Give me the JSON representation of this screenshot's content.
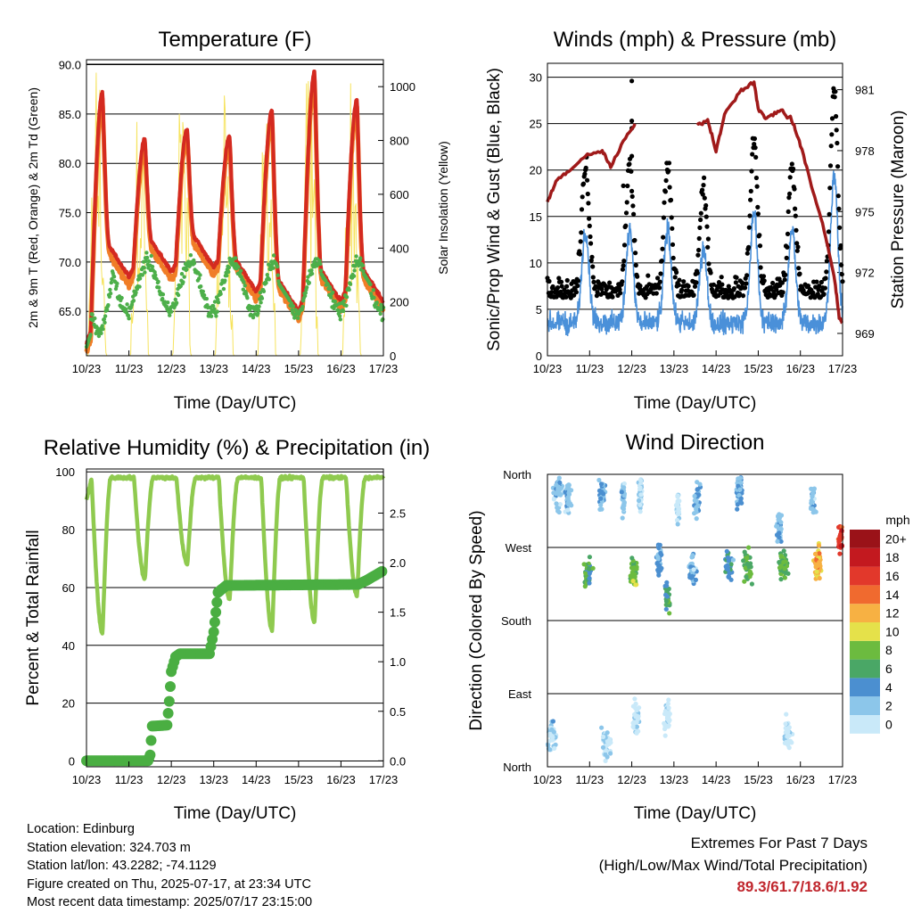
{
  "panels": {
    "temperature": {
      "title": "Temperature (F)",
      "ylabel_left": "2m & 9m T (Red, Orange) & 2m Td (Green)",
      "ylabel_right": "Solar Insolation (Yellow)",
      "xlabel": "Time (Day/UTC)"
    },
    "winds": {
      "title": "Winds (mph) & Pressure (mb)",
      "ylabel_left": "Sonic/Prop Wind & Gust (Blue, Black)",
      "ylabel_right": "Station Pressure (Maroon)",
      "xlabel": "Time (Day/UTC)"
    },
    "humidity": {
      "title": "Relative Humidity (%) & Precipitation (in)",
      "ylabel_left": "Percent & Total Rainfall",
      "xlabel": "Time (Day/UTC)"
    },
    "direction": {
      "title": "Wind Direction",
      "ylabel_left": "Direction (Colored By Speed)",
      "xlabel": "Time (Day/UTC)",
      "legend_title": "mph"
    }
  },
  "chart_data": [
    {
      "type": "line",
      "title": "Temperature (F)",
      "x": [
        "10/23",
        "11/23",
        "12/23",
        "13/23",
        "14/23",
        "15/23",
        "16/23",
        "17/23"
      ],
      "ylim": [
        60.5,
        90.5
      ],
      "y2lim": [
        0,
        1100
      ],
      "yticks": [
        65.0,
        70.0,
        75.0,
        80.0,
        85.0,
        90.0
      ],
      "y2ticks": [
        0,
        200,
        400,
        600,
        800,
        1000
      ],
      "daily_max_T": [
        87.3,
        82.5,
        83.5,
        82.8,
        85.4,
        89.3,
        86.4
      ],
      "daily_min_T": [
        61.7,
        68.5,
        69.0,
        69.5,
        67.0,
        65.0,
        66.0
      ],
      "colors": {
        "t2m": "#d42a20",
        "t9m": "#f07d27",
        "td": "#4daf4a",
        "solar": "#f6e35f"
      },
      "series": [
        {
          "name": "2m T"
        },
        {
          "name": "9m T"
        },
        {
          "name": "2m Td"
        },
        {
          "name": "Solar Insolation"
        }
      ]
    },
    {
      "type": "scatter",
      "title": "Winds (mph) & Pressure (mb)",
      "x": [
        "10/23",
        "11/23",
        "12/23",
        "13/23",
        "14/23",
        "15/23",
        "16/23",
        "17/23"
      ],
      "ylim": [
        0,
        31.5
      ],
      "y2lim": [
        967.9,
        982.3
      ],
      "yticks": [
        0,
        5,
        10,
        15,
        20,
        25,
        30
      ],
      "y2ticks": [
        969,
        972,
        975,
        978,
        981
      ],
      "max_gust": 29.6,
      "colors": {
        "wind": "#4a90d9",
        "gust": "#000000",
        "pressure": "#a01a1a"
      },
      "series": [
        {
          "name": "Sonic/Prop Wind"
        },
        {
          "name": "Gust"
        },
        {
          "name": "Station Pressure"
        }
      ]
    },
    {
      "type": "line",
      "title": "Relative Humidity (%) & Precipitation (in)",
      "x": [
        "10/23",
        "11/23",
        "12/23",
        "13/23",
        "14/23",
        "15/23",
        "16/23",
        "17/23"
      ],
      "ylim": [
        -2,
        101
      ],
      "y2lim": [
        -0.06,
        2.945
      ],
      "yticks": [
        0,
        20,
        40,
        60,
        80,
        100
      ],
      "y2ticks": [
        "0.0",
        "0.5",
        "1.0",
        "1.5",
        "2.0",
        "2.5"
      ],
      "rh_daily_min": [
        44,
        63,
        68,
        56,
        45,
        48,
        57
      ],
      "precip_total": 1.92,
      "colors": {
        "rh": "#8fca4f",
        "precip": "#4aae42"
      },
      "series": [
        {
          "name": "Relative Humidity"
        },
        {
          "name": "Total Precipitation"
        }
      ]
    },
    {
      "type": "scatter",
      "title": "Wind Direction",
      "x": [
        "10/23",
        "11/23",
        "12/23",
        "13/23",
        "14/23",
        "15/23",
        "16/23",
        "17/23"
      ],
      "yticks": [
        "North",
        "East",
        "South",
        "West",
        "North"
      ],
      "legend": {
        "title": "mph",
        "labels": [
          "0",
          "2",
          "4",
          "6",
          "8",
          "10",
          "12",
          "14",
          "16",
          "18",
          "20+"
        ],
        "colors": [
          "#c9e9f9",
          "#8cc6ea",
          "#4b8fd0",
          "#4aa766",
          "#6cbb3f",
          "#e5e14a",
          "#f7b143",
          "#f06a2f",
          "#e2382b",
          "#c3191f",
          "#9a1218"
        ]
      }
    }
  ],
  "info": {
    "location": "Location: Edinburg",
    "elevation": "Station elevation: 324.703 m",
    "latlon": "Station lat/lon: 43.2282; -74.1129",
    "created": "Figure created on Thu, 2025-07-17, at 23:34 UTC",
    "recent": "Most recent data timestamp: 2025/07/17 23:15:00"
  },
  "extremes": {
    "title": "Extremes For Past 7 Days",
    "subtitle": "(High/Low/Max Wind/Total Precipitation)",
    "values": "89.3/61.7/18.6/1.92"
  }
}
